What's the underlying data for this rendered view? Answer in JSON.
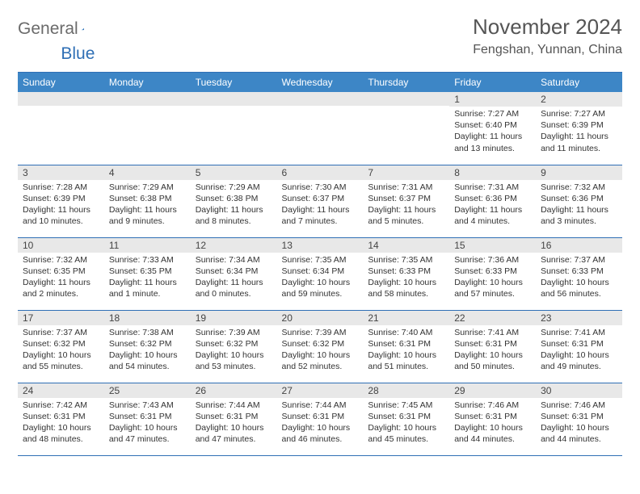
{
  "logo": {
    "text_general": "General",
    "text_blue": "Blue",
    "triangle_color": "#2f6fb5"
  },
  "title": "November 2024",
  "location": "Fengshan, Yunnan, China",
  "colors": {
    "header_bg": "#3d86c6",
    "header_border": "#2f6fb5",
    "band_bg": "#e8e8e8",
    "text": "#333333"
  },
  "day_names": [
    "Sunday",
    "Monday",
    "Tuesday",
    "Wednesday",
    "Thursday",
    "Friday",
    "Saturday"
  ],
  "weeks": [
    [
      {
        "num": "",
        "sunrise": "",
        "sunset": "",
        "daylight": ""
      },
      {
        "num": "",
        "sunrise": "",
        "sunset": "",
        "daylight": ""
      },
      {
        "num": "",
        "sunrise": "",
        "sunset": "",
        "daylight": ""
      },
      {
        "num": "",
        "sunrise": "",
        "sunset": "",
        "daylight": ""
      },
      {
        "num": "",
        "sunrise": "",
        "sunset": "",
        "daylight": ""
      },
      {
        "num": "1",
        "sunrise": "Sunrise: 7:27 AM",
        "sunset": "Sunset: 6:40 PM",
        "daylight": "Daylight: 11 hours and 13 minutes."
      },
      {
        "num": "2",
        "sunrise": "Sunrise: 7:27 AM",
        "sunset": "Sunset: 6:39 PM",
        "daylight": "Daylight: 11 hours and 11 minutes."
      }
    ],
    [
      {
        "num": "3",
        "sunrise": "Sunrise: 7:28 AM",
        "sunset": "Sunset: 6:39 PM",
        "daylight": "Daylight: 11 hours and 10 minutes."
      },
      {
        "num": "4",
        "sunrise": "Sunrise: 7:29 AM",
        "sunset": "Sunset: 6:38 PM",
        "daylight": "Daylight: 11 hours and 9 minutes."
      },
      {
        "num": "5",
        "sunrise": "Sunrise: 7:29 AM",
        "sunset": "Sunset: 6:38 PM",
        "daylight": "Daylight: 11 hours and 8 minutes."
      },
      {
        "num": "6",
        "sunrise": "Sunrise: 7:30 AM",
        "sunset": "Sunset: 6:37 PM",
        "daylight": "Daylight: 11 hours and 7 minutes."
      },
      {
        "num": "7",
        "sunrise": "Sunrise: 7:31 AM",
        "sunset": "Sunset: 6:37 PM",
        "daylight": "Daylight: 11 hours and 5 minutes."
      },
      {
        "num": "8",
        "sunrise": "Sunrise: 7:31 AM",
        "sunset": "Sunset: 6:36 PM",
        "daylight": "Daylight: 11 hours and 4 minutes."
      },
      {
        "num": "9",
        "sunrise": "Sunrise: 7:32 AM",
        "sunset": "Sunset: 6:36 PM",
        "daylight": "Daylight: 11 hours and 3 minutes."
      }
    ],
    [
      {
        "num": "10",
        "sunrise": "Sunrise: 7:32 AM",
        "sunset": "Sunset: 6:35 PM",
        "daylight": "Daylight: 11 hours and 2 minutes."
      },
      {
        "num": "11",
        "sunrise": "Sunrise: 7:33 AM",
        "sunset": "Sunset: 6:35 PM",
        "daylight": "Daylight: 11 hours and 1 minute."
      },
      {
        "num": "12",
        "sunrise": "Sunrise: 7:34 AM",
        "sunset": "Sunset: 6:34 PM",
        "daylight": "Daylight: 11 hours and 0 minutes."
      },
      {
        "num": "13",
        "sunrise": "Sunrise: 7:35 AM",
        "sunset": "Sunset: 6:34 PM",
        "daylight": "Daylight: 10 hours and 59 minutes."
      },
      {
        "num": "14",
        "sunrise": "Sunrise: 7:35 AM",
        "sunset": "Sunset: 6:33 PM",
        "daylight": "Daylight: 10 hours and 58 minutes."
      },
      {
        "num": "15",
        "sunrise": "Sunrise: 7:36 AM",
        "sunset": "Sunset: 6:33 PM",
        "daylight": "Daylight: 10 hours and 57 minutes."
      },
      {
        "num": "16",
        "sunrise": "Sunrise: 7:37 AM",
        "sunset": "Sunset: 6:33 PM",
        "daylight": "Daylight: 10 hours and 56 minutes."
      }
    ],
    [
      {
        "num": "17",
        "sunrise": "Sunrise: 7:37 AM",
        "sunset": "Sunset: 6:32 PM",
        "daylight": "Daylight: 10 hours and 55 minutes."
      },
      {
        "num": "18",
        "sunrise": "Sunrise: 7:38 AM",
        "sunset": "Sunset: 6:32 PM",
        "daylight": "Daylight: 10 hours and 54 minutes."
      },
      {
        "num": "19",
        "sunrise": "Sunrise: 7:39 AM",
        "sunset": "Sunset: 6:32 PM",
        "daylight": "Daylight: 10 hours and 53 minutes."
      },
      {
        "num": "20",
        "sunrise": "Sunrise: 7:39 AM",
        "sunset": "Sunset: 6:32 PM",
        "daylight": "Daylight: 10 hours and 52 minutes."
      },
      {
        "num": "21",
        "sunrise": "Sunrise: 7:40 AM",
        "sunset": "Sunset: 6:31 PM",
        "daylight": "Daylight: 10 hours and 51 minutes."
      },
      {
        "num": "22",
        "sunrise": "Sunrise: 7:41 AM",
        "sunset": "Sunset: 6:31 PM",
        "daylight": "Daylight: 10 hours and 50 minutes."
      },
      {
        "num": "23",
        "sunrise": "Sunrise: 7:41 AM",
        "sunset": "Sunset: 6:31 PM",
        "daylight": "Daylight: 10 hours and 49 minutes."
      }
    ],
    [
      {
        "num": "24",
        "sunrise": "Sunrise: 7:42 AM",
        "sunset": "Sunset: 6:31 PM",
        "daylight": "Daylight: 10 hours and 48 minutes."
      },
      {
        "num": "25",
        "sunrise": "Sunrise: 7:43 AM",
        "sunset": "Sunset: 6:31 PM",
        "daylight": "Daylight: 10 hours and 47 minutes."
      },
      {
        "num": "26",
        "sunrise": "Sunrise: 7:44 AM",
        "sunset": "Sunset: 6:31 PM",
        "daylight": "Daylight: 10 hours and 47 minutes."
      },
      {
        "num": "27",
        "sunrise": "Sunrise: 7:44 AM",
        "sunset": "Sunset: 6:31 PM",
        "daylight": "Daylight: 10 hours and 46 minutes."
      },
      {
        "num": "28",
        "sunrise": "Sunrise: 7:45 AM",
        "sunset": "Sunset: 6:31 PM",
        "daylight": "Daylight: 10 hours and 45 minutes."
      },
      {
        "num": "29",
        "sunrise": "Sunrise: 7:46 AM",
        "sunset": "Sunset: 6:31 PM",
        "daylight": "Daylight: 10 hours and 44 minutes."
      },
      {
        "num": "30",
        "sunrise": "Sunrise: 7:46 AM",
        "sunset": "Sunset: 6:31 PM",
        "daylight": "Daylight: 10 hours and 44 minutes."
      }
    ]
  ]
}
